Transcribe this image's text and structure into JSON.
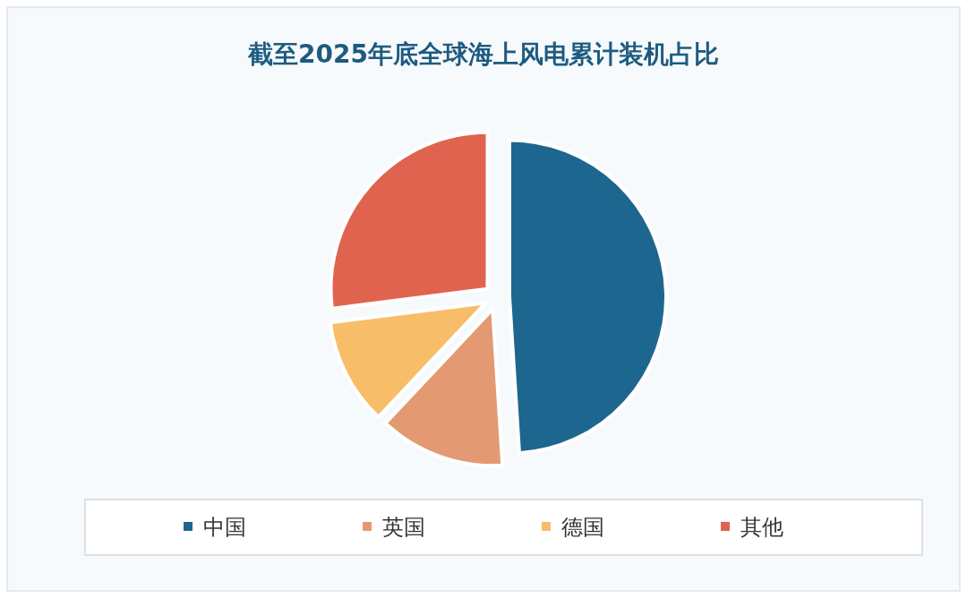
{
  "chart_data": {
    "type": "pie",
    "title": "截至2025年底全球海上风电累计装机占比",
    "categories": [
      "中国",
      "英国",
      "德国",
      "其他"
    ],
    "values": [
      49,
      13,
      11,
      27
    ],
    "colors": [
      "#1d668f",
      "#e39a72",
      "#f8bd68",
      "#e0634f"
    ],
    "legend": "bottom"
  }
}
